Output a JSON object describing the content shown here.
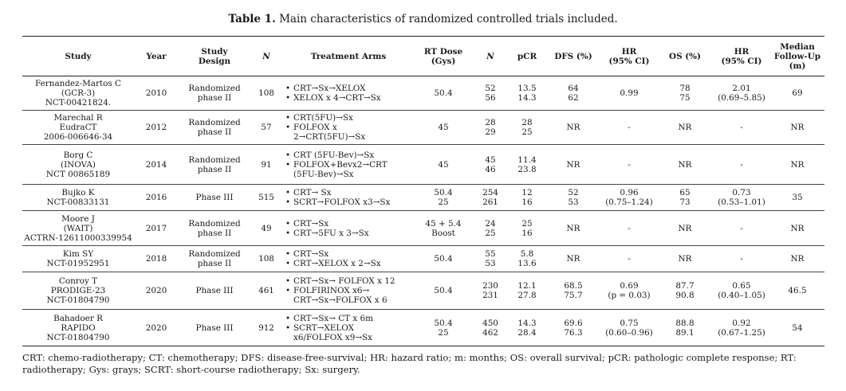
{
  "caption": {
    "label": "Table 1.",
    "text": "Main characteristics of randomized controlled trials included."
  },
  "columns": [
    "Study",
    "Year",
    "Study\nDesign",
    "N",
    "Treatment Arms",
    "RT Dose\n(Gys)",
    "N",
    "pCR",
    "DFS (%)",
    "HR\n(95% CI)",
    "OS (%)",
    "HR\n(95% CI)",
    "Median\nFollow-Up\n(m)"
  ],
  "rows": [
    {
      "study": "Fernandez-Martos C\n(GCR-3)\nNCT-00421824.",
      "year": "2010",
      "design": "Randomized\nphase II",
      "n": "108",
      "arms": [
        "CRT→Sx→XELOX",
        "XELOX x 4→CRT→Sx"
      ],
      "rt": "50.4",
      "narm": "52\n56",
      "pcr": "13.5\n14.3",
      "dfs": "64\n62",
      "hr_dfs": "0.99",
      "os": "78\n75",
      "hr_os": "2.01\n(0.69–5.85)",
      "fu": "69"
    },
    {
      "study": "Marechal R\nEudraCT\n2006-006646-34",
      "year": "2012",
      "design": "Randomized\nphase II",
      "n": "57",
      "arms": [
        "CRT(5FU)→Sx",
        "FOLFOX x\n2→CRT(5FU)→Sx"
      ],
      "rt": "45",
      "narm": "28\n29",
      "pcr": "28\n25",
      "dfs": "NR",
      "hr_dfs": "-",
      "os": "NR",
      "hr_os": "-",
      "fu": "NR"
    },
    {
      "study": "Borg C\n(INOVA)\nNCT 00865189",
      "year": "2014",
      "design": "Randomized\nphase II",
      "n": "91",
      "arms": [
        "CRT (5FU-Bev)→Sx",
        "FOLFOX+Bevx2→CRT\n(5FU-Bev)→Sx"
      ],
      "rt": "45",
      "narm": "45\n46",
      "pcr": "11.4\n23.8",
      "dfs": "NR",
      "hr_dfs": "-",
      "os": "NR",
      "hr_os": "-",
      "fu": "NR"
    },
    {
      "study": "Bujko K\nNCT-00833131",
      "year": "2016",
      "design": "Phase III",
      "n": "515",
      "arms": [
        "CRT→ Sx",
        "SCRT→FOLFOX x3→Sx"
      ],
      "rt": "50.4\n25",
      "narm": "254\n261",
      "pcr": "12\n16",
      "dfs": "52\n53",
      "hr_dfs": "0.96\n(0.75–1.24)",
      "os": "65\n73",
      "hr_os": "0.73\n(0.53–1.01)",
      "fu": "35"
    },
    {
      "study": "Moore J\n(WAIT)\nACTRN-12611000339954",
      "year": "2017",
      "design": "Randomized\nphase II",
      "n": "49",
      "arms": [
        "CRT→Sx",
        "CRT→5FU x 3→Sx"
      ],
      "rt": "45 + 5.4\nBoost",
      "narm": "24\n25",
      "pcr": "25\n16",
      "dfs": "NR",
      "hr_dfs": "-",
      "os": "NR",
      "hr_os": "-",
      "fu": "NR"
    },
    {
      "study": "Kim SY\nNCT-01952951",
      "year": "2018",
      "design": "Randomized\nphase II",
      "n": "108",
      "arms": [
        "CRT→Sx",
        "CRT→XELOX x 2→Sx"
      ],
      "rt": "50.4",
      "narm": "55\n53",
      "pcr": "5.8\n13.6",
      "dfs": "NR",
      "hr_dfs": "-",
      "os": "NR",
      "hr_os": "-",
      "fu": "NR"
    },
    {
      "study": "Conroy T\nPRODIGE-23\nNCT-01804790",
      "year": "2020",
      "design": "Phase III",
      "n": "461",
      "arms": [
        "CRT→Sx→ FOLFOX x 12",
        "FOLFIRINOX x6→\nCRT→Sx→FOLFOX x 6"
      ],
      "rt": "50.4",
      "narm": "230\n231",
      "pcr": "12.1\n27.8",
      "dfs": "68.5\n75.7",
      "hr_dfs": "0.69\n(p = 0.03)",
      "os": "87.7\n90.8",
      "hr_os": "0.65\n(0.40–1.05)",
      "fu": "46.5"
    },
    {
      "study": "Bahadoer R\nRAPIDO\nNCT-01804790",
      "year": "2020",
      "design": "Phase III",
      "n": "912",
      "arms": [
        "CRT→Sx→ CT x 6m",
        "SCRT→XELOX\nx6/FOLFOX x9→Sx"
      ],
      "rt": "50.4\n25",
      "narm": "450\n462",
      "pcr": "14.3\n28.4",
      "dfs": "69.6\n76.3",
      "hr_dfs": "0.75\n(0.60–0.96)",
      "os": "88.8\n89.1",
      "hr_os": "0.92\n(0.67–1.25)",
      "fu": "54"
    }
  ],
  "footnote": "CRT: chemo-radiotherapy; CT: chemotherapy; DFS: disease-free-survival; HR: hazard ratio; m: months; OS: overall survival; pCR: pathologic complete response; RT: radiotherapy; Gys: grays; SCRT: short-course radiotherapy; Sx: surgery."
}
